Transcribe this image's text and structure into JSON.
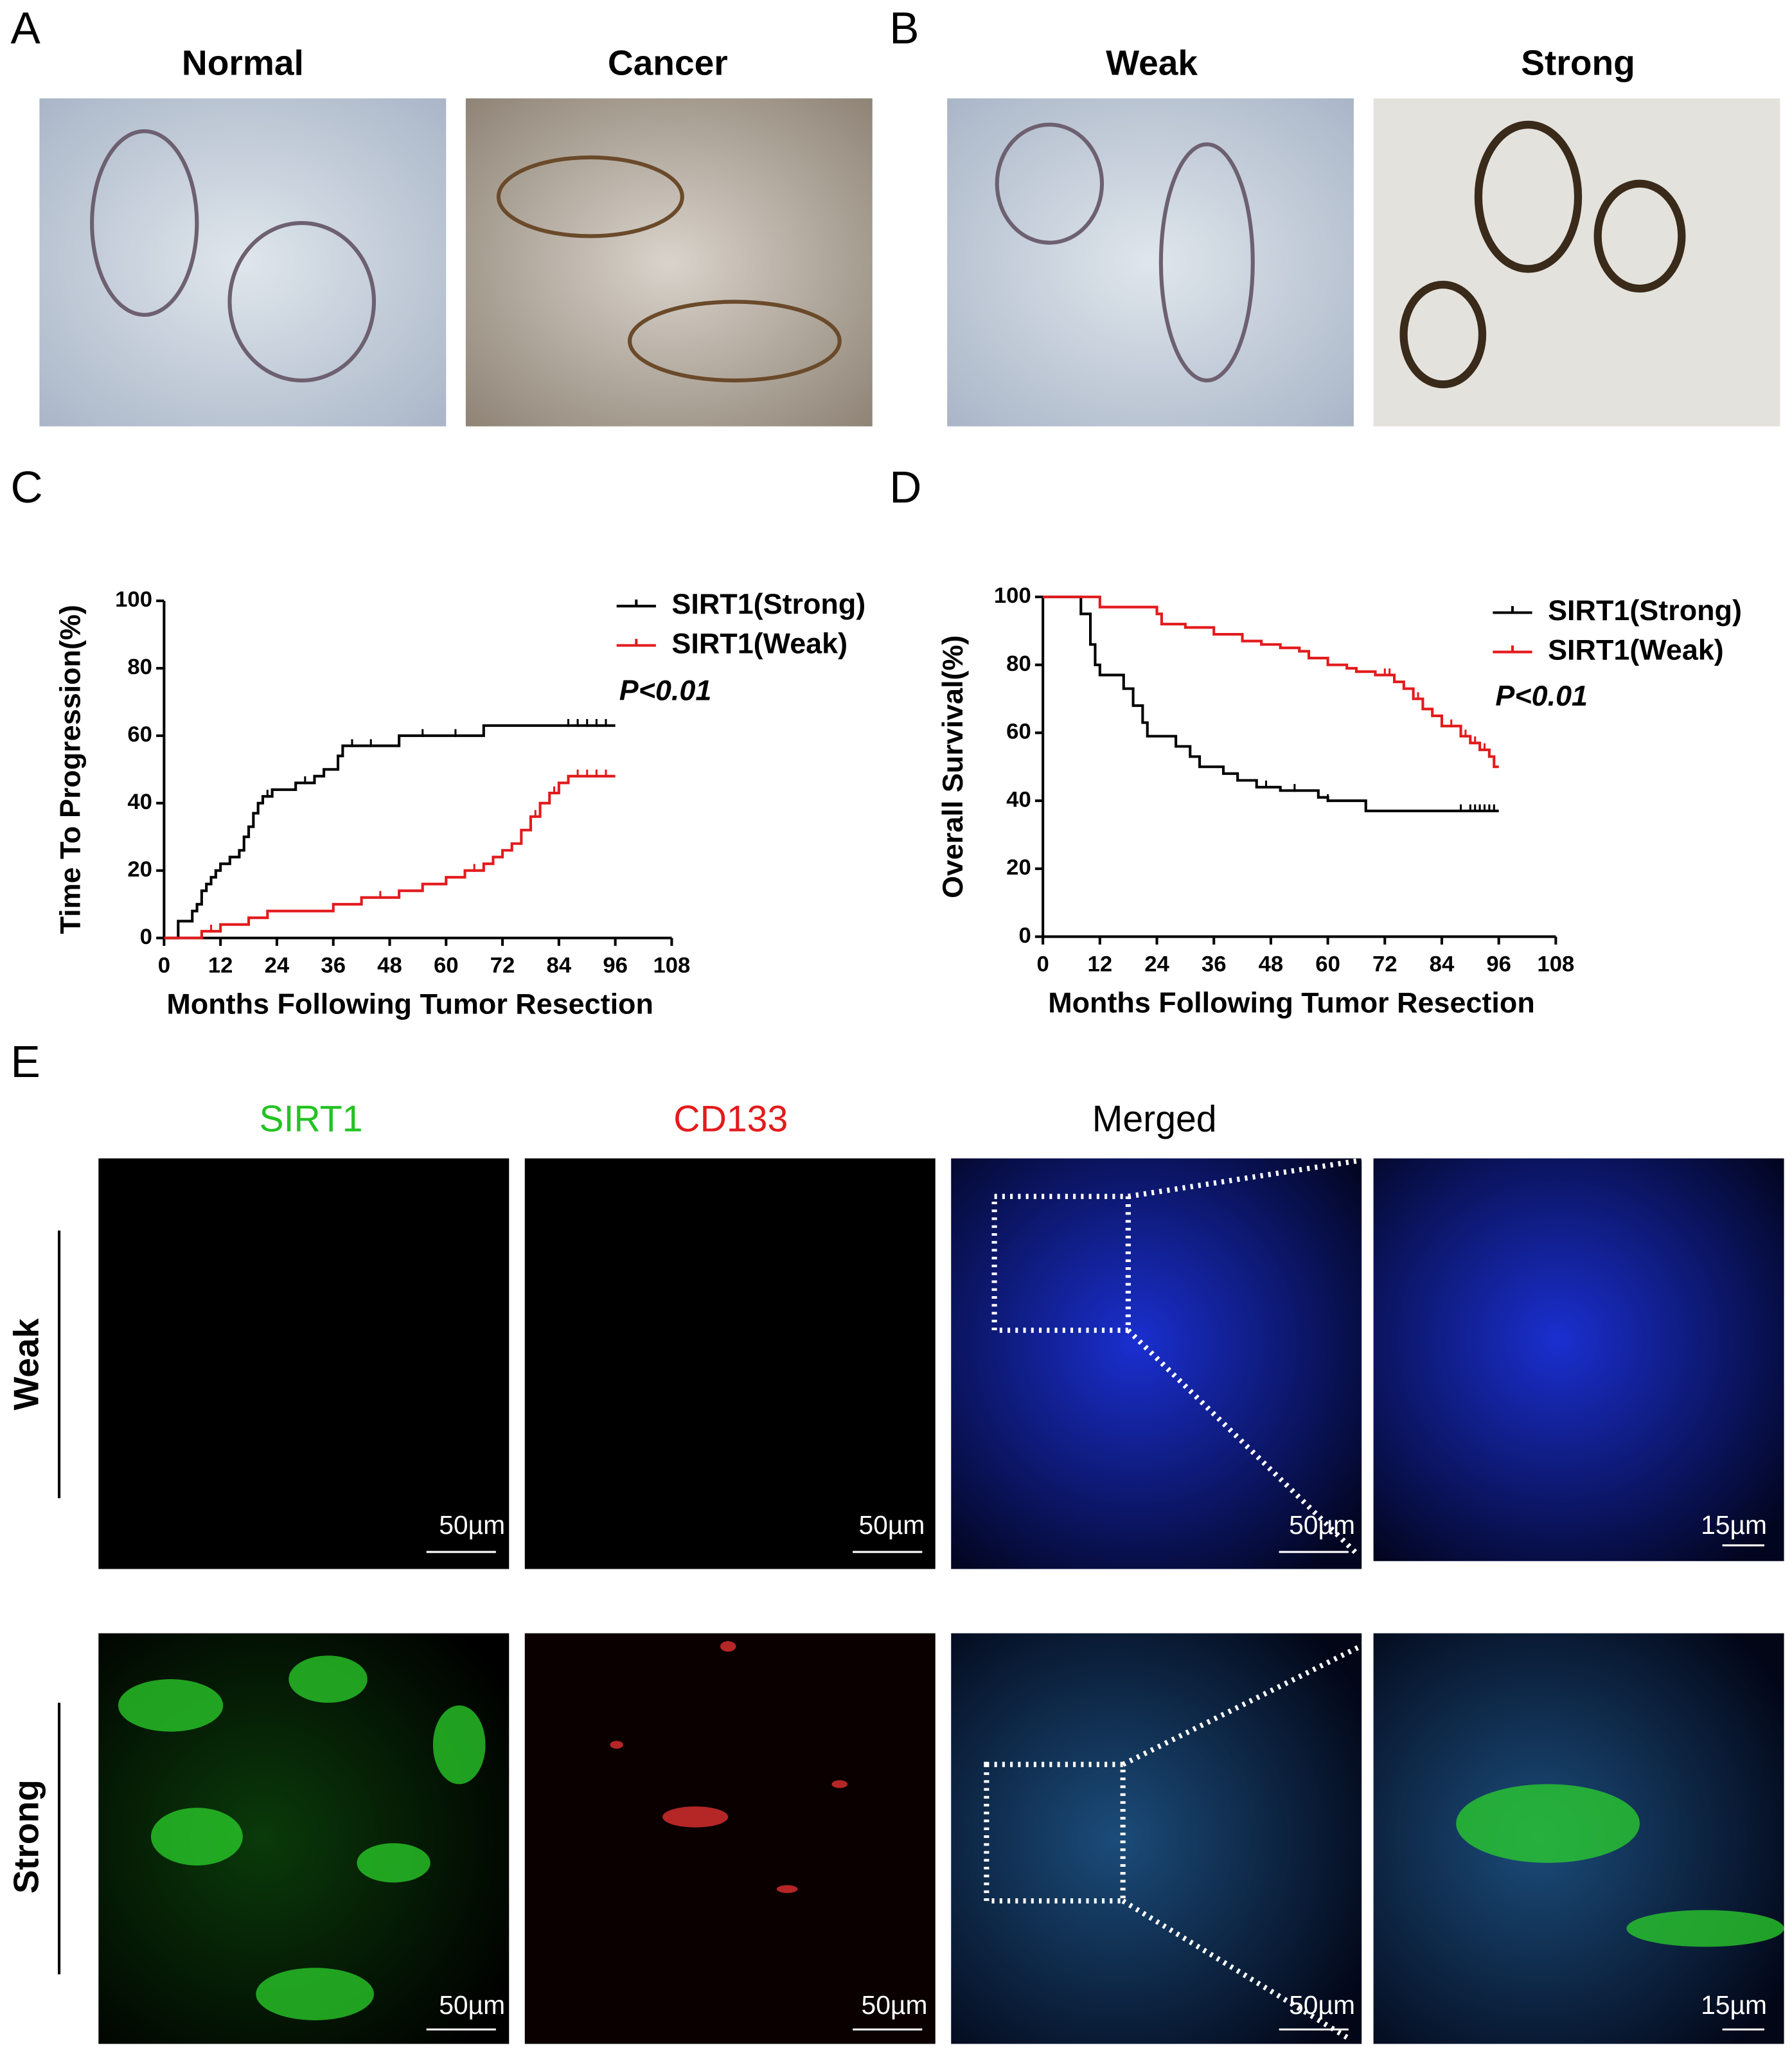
{
  "panels": {
    "letters": [
      "A",
      "B",
      "C",
      "D",
      "E"
    ],
    "ihc_titles": [
      "Normal",
      "Cancer",
      "Weak",
      "Strong"
    ],
    "if_titles": [
      "SIRT1",
      "CD133",
      "Merged"
    ],
    "row_labels": [
      "Weak",
      "Strong"
    ],
    "scale_bars": [
      "50µm",
      "50µm",
      "50µm",
      "15µm",
      "50µm",
      "50µm",
      "50µm",
      "15µm"
    ]
  },
  "chart_data": [
    {
      "type": "step",
      "x_label": "Months Following Tumor Resection",
      "y_label": "Time To Progression(%)",
      "annotation": "P<0.01",
      "xlim": [
        0,
        108
      ],
      "ylim": [
        0,
        100
      ],
      "xticks": [
        0,
        12,
        24,
        36,
        48,
        60,
        72,
        84,
        96,
        108
      ],
      "yticks": [
        0,
        20,
        40,
        60,
        80,
        100
      ],
      "series": [
        {
          "name": "SIRT1(Strong)",
          "color": "#000000",
          "x": [
            0,
            3,
            6,
            7,
            8,
            9,
            10,
            11,
            12,
            14,
            16,
            17,
            18,
            19,
            20,
            21,
            23,
            28,
            32,
            34,
            37,
            38,
            50,
            68,
            96
          ],
          "values": [
            0,
            5,
            8,
            10,
            14,
            16,
            18,
            20,
            22,
            24,
            26,
            30,
            33,
            37,
            40,
            42,
            44,
            46,
            48,
            50,
            54,
            57,
            60,
            63,
            63
          ],
          "censored": [
            22,
            30,
            40,
            44,
            55,
            62,
            86,
            88,
            90,
            92,
            94
          ]
        },
        {
          "name": "SIRT1(Weak)",
          "color": "#e31a1c",
          "x": [
            0,
            8,
            12,
            18,
            22,
            36,
            42,
            50,
            55,
            60,
            64,
            68,
            70,
            72,
            74,
            76,
            78,
            80,
            82,
            84,
            86,
            96
          ],
          "values": [
            0,
            2,
            4,
            6,
            8,
            10,
            12,
            14,
            16,
            18,
            20,
            22,
            24,
            26,
            28,
            32,
            36,
            40,
            43,
            46,
            48,
            48
          ],
          "censored": [
            10,
            46,
            66,
            79,
            83,
            88,
            90,
            92,
            94
          ]
        }
      ]
    },
    {
      "type": "step",
      "x_label": "Months Following Tumor Resection",
      "y_label": "Overall Survival(%)",
      "annotation": "P<0.01",
      "xlim": [
        0,
        108
      ],
      "ylim": [
        0,
        100
      ],
      "xticks": [
        0,
        12,
        24,
        36,
        48,
        60,
        72,
        84,
        96,
        108
      ],
      "yticks": [
        0,
        20,
        40,
        60,
        80,
        100
      ],
      "series": [
        {
          "name": "SIRT1(Strong)",
          "color": "#000000",
          "x": [
            0,
            8,
            10,
            11,
            12,
            17,
            19,
            21,
            22,
            28,
            31,
            33,
            38,
            41,
            45,
            50,
            58,
            60,
            68,
            96
          ],
          "values": [
            100,
            95,
            86,
            80,
            77,
            73,
            68,
            63,
            59,
            56,
            53,
            50,
            48,
            46,
            44,
            43,
            41,
            40,
            37,
            37
          ],
          "censored": [
            47,
            53,
            60,
            88,
            90,
            91,
            92,
            93,
            94,
            95
          ]
        },
        {
          "name": "SIRT1(Weak)",
          "color": "#e31a1c",
          "x": [
            0,
            12,
            24,
            25,
            30,
            36,
            42,
            46,
            50,
            54,
            56,
            60,
            64,
            66,
            70,
            74,
            76,
            78,
            80,
            82,
            84,
            88,
            90,
            92,
            94,
            95,
            96
          ],
          "values": [
            100,
            97,
            95,
            92,
            91,
            89,
            87,
            86,
            85,
            84,
            82,
            80,
            79,
            78,
            77,
            75,
            73,
            70,
            67,
            65,
            62,
            59,
            57,
            55,
            53,
            50,
            50
          ],
          "censored": [
            72,
            73,
            79,
            86,
            89,
            91,
            93
          ]
        }
      ]
    }
  ]
}
